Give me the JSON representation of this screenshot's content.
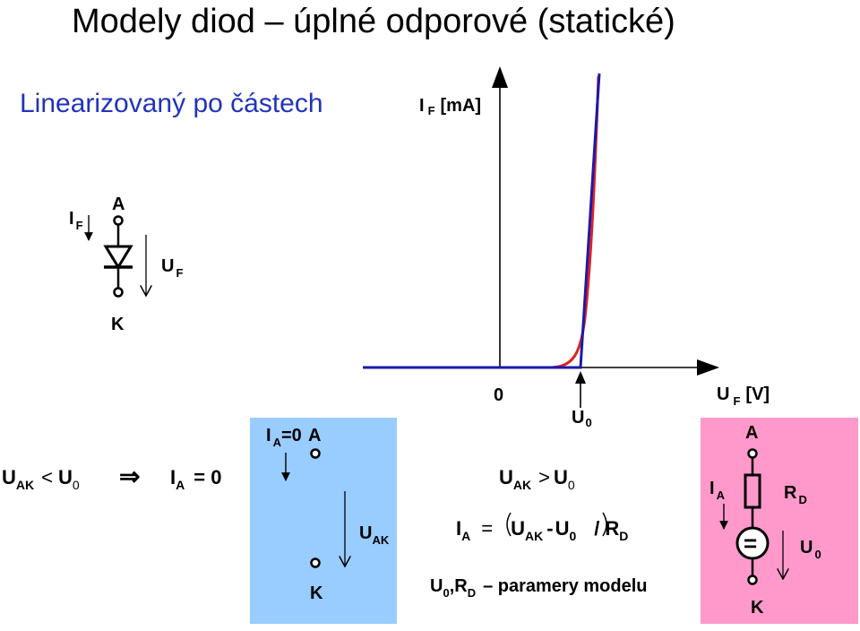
{
  "title": "Modely diod – úplné odporové (statické)",
  "subtitle": "Linearizovaný po částech",
  "colors": {
    "subtitle": "#2233bb",
    "ideal_line": "#1a1aaa",
    "real_curve": "#dd2222",
    "panel_blue": "#99ccff",
    "panel_pink": "#ff99cc"
  },
  "axis": {
    "y_main": "I",
    "y_sub": "F",
    "y_unit": "[mA]",
    "x_main": "U",
    "x_sub": "F",
    "x_unit": "[V]",
    "origin": "0",
    "u0_main": "U",
    "u0_sub": "0"
  },
  "symbol": {
    "current_main": "I",
    "current_sub": "F",
    "anode": "A",
    "cathode": "K",
    "voltage_main": "U",
    "voltage_sub": "F"
  },
  "cond_off": {
    "u_main": "U",
    "u_sub": "AK",
    "lt": "<",
    "u0_main": "U",
    "u0_sub": "0",
    "implies": "⇒",
    "i_main": "I",
    "i_sub": "A",
    "eq": "= 0"
  },
  "blue_panel": {
    "i_main": "I",
    "i_sub": "A",
    "i_val": "=0",
    "anode": "A",
    "cathode": "K",
    "u_main": "U",
    "u_sub": "AK"
  },
  "cond_on": {
    "u_main": "U",
    "u_sub": "AK",
    "gt": ">",
    "u0_main": "U",
    "u0_sub": "0",
    "i_main": "I",
    "i_sub": "A",
    "eq": "=",
    "ua_main": "U",
    "ua_sub": "AK",
    "minus": "-",
    "u0b_main": "U",
    "u0b_sub": "0",
    "div": "/",
    "r_main": "R",
    "r_sub": "D",
    "note_u": "U",
    "note_u_sub": "0",
    "note_r": ",R",
    "note_r_sub": "D",
    "note_text": "– paramery modelu"
  },
  "pink_panel": {
    "anode": "A",
    "cathode": "K",
    "i_main": "I",
    "i_sub": "A",
    "r_main": "R",
    "r_sub": "D",
    "u_main": "U",
    "u_sub": "0",
    "source_symbol": "="
  }
}
